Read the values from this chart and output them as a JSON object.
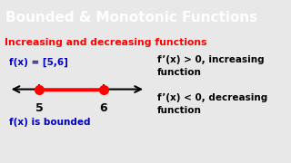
{
  "title": "Bounded & Monotonic Functions",
  "title_bg": "#1E6FE8",
  "title_color": "#FFFFFF",
  "subtitle": "Increasing and decreasing functions",
  "subtitle_color": "#FF0000",
  "fx_label": "f(x) = [5,6]",
  "fx_color": "#0000CC",
  "line_color": "#FF0000",
  "dot_color": "#FF0000",
  "tick_labels": [
    "5",
    "6"
  ],
  "bounded_text": "f(x) is bounded",
  "bounded_color": "#0000CC",
  "right_text_1": "f’(x) > 0, increasing\nfunction",
  "right_text_2": "f’(x) < 0, decreasing\nfunction",
  "right_text_color": "#000000",
  "bg_color": "#E8E8E8"
}
